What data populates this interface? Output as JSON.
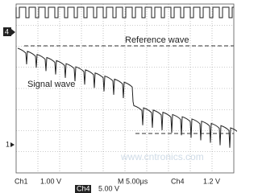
{
  "screen": {
    "annotations": {
      "reference": "Reference wave",
      "signal": "Signal wave"
    },
    "markers": {
      "ch4": "4",
      "ch1": "1"
    },
    "status": {
      "ch1_label": "Ch1",
      "ch1_scale": "1.00 V",
      "time": "M 5.00µs",
      "trig_ch": "Ch4",
      "trig_level": "1.2 V",
      "ch4_label": "Ch4",
      "ch4_scale": "5.00 V"
    },
    "watermark": "www.cntronics.com"
  }
}
